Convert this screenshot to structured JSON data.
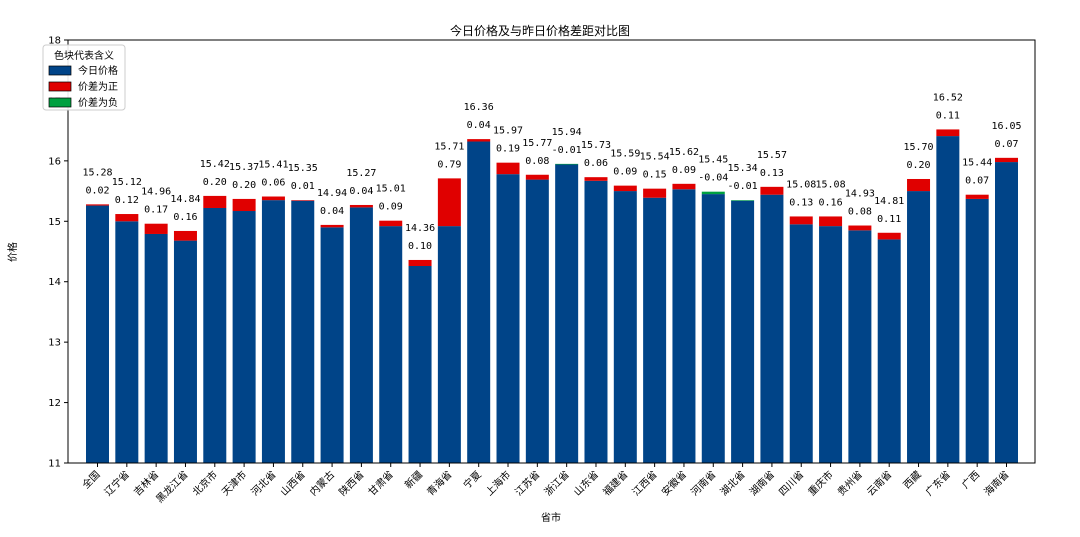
{
  "chart_data": {
    "type": "bar",
    "title": "今日价格及与昨日价格差距对比图",
    "xlabel": "省市",
    "ylabel": "价格",
    "ylim": [
      11,
      18
    ],
    "yticks": [
      "11",
      "12",
      "13",
      "14",
      "15",
      "16",
      "17",
      "18"
    ],
    "grid": false,
    "legend": {
      "title": "色块代表含义",
      "placement": "top-left",
      "entries": [
        {
          "label": "今日价格",
          "color": "#004488"
        },
        {
          "label": "价差为正",
          "color": "#e00000"
        },
        {
          "label": "价差为负",
          "color": "#00a040"
        }
      ]
    },
    "categories": [
      "全国",
      "辽宁省",
      "吉林省",
      "黑龙江省",
      "北京市",
      "天津市",
      "河北省",
      "山西省",
      "内蒙古",
      "陕西省",
      "甘肃省",
      "新疆",
      "青海省",
      "宁夏",
      "上海市",
      "江苏省",
      "浙江省",
      "山东省",
      "福建省",
      "江西省",
      "安徽省",
      "河南省",
      "湖北省",
      "湖南省",
      "四川省",
      "重庆市",
      "贵州省",
      "云南省",
      "西藏",
      "广东省",
      "广西",
      "海南省"
    ],
    "today_price": [
      15.28,
      15.12,
      14.96,
      14.84,
      15.42,
      15.37,
      15.41,
      15.35,
      14.94,
      15.27,
      15.01,
      14.36,
      15.71,
      16.36,
      15.97,
      15.77,
      15.94,
      15.73,
      15.59,
      15.54,
      15.62,
      15.45,
      15.34,
      15.57,
      15.08,
      15.08,
      14.93,
      14.81,
      15.7,
      16.52,
      15.44,
      16.05
    ],
    "price_diff": [
      0.02,
      0.12,
      0.17,
      0.16,
      0.2,
      0.2,
      0.06,
      0.01,
      0.04,
      0.04,
      0.09,
      0.1,
      0.79,
      0.04,
      0.19,
      0.08,
      -0.01,
      0.06,
      0.09,
      0.15,
      0.09,
      -0.04,
      -0.01,
      0.13,
      0.13,
      0.16,
      0.08,
      0.11,
      0.2,
      0.11,
      0.07,
      0.07
    ],
    "price_labels": [
      "15.28",
      "15.12",
      "14.96",
      "14.84",
      "15.42",
      "15.37",
      "15.41",
      "15.35",
      "14.94",
      "15.27",
      "15.01",
      "14.36",
      "15.71",
      "16.36",
      "15.97",
      "15.77",
      "15.94",
      "15.73",
      "15.59",
      "15.54",
      "15.62",
      "15.45",
      "15.34",
      "15.57",
      "15.08",
      "15.08",
      "14.93",
      "14.81",
      "15.70",
      "16.52",
      "15.44",
      "16.05"
    ],
    "diff_labels": [
      "0.02",
      "0.12",
      "0.17",
      "0.16",
      "0.20",
      "0.20",
      "0.06",
      "0.01",
      "0.04",
      "0.04",
      "0.09",
      "0.10",
      "0.79",
      "0.04",
      "0.19",
      "0.08",
      "-0.01",
      "0.06",
      "0.09",
      "0.15",
      "0.09",
      "-0.04",
      "-0.01",
      "0.13",
      "0.13",
      "0.16",
      "0.08",
      "0.11",
      "0.20",
      "0.11",
      "0.07",
      "0.07"
    ],
    "colors": {
      "today": "#004488",
      "positive": "#e00000",
      "negative": "#00a040"
    }
  }
}
